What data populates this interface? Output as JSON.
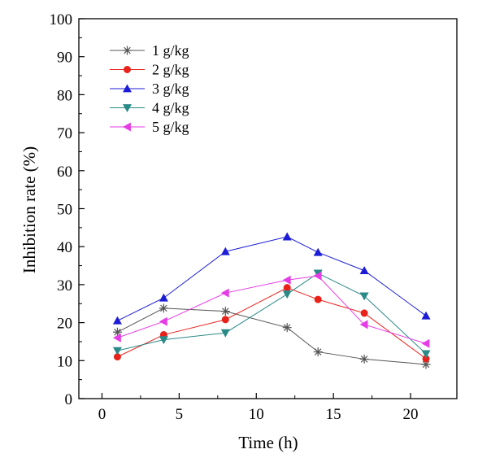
{
  "chart_data": {
    "type": "line",
    "title": "",
    "xlabel": "Time (h)",
    "ylabel": "Inhibition rate (%)",
    "xlim": [
      -1.5,
      23
    ],
    "ylim": [
      0,
      100
    ],
    "xticks": [
      0,
      5,
      10,
      15,
      20
    ],
    "yticks": [
      0,
      10,
      20,
      30,
      40,
      50,
      60,
      70,
      80,
      90,
      100
    ],
    "grid": false,
    "legend_position": "top-left",
    "x": [
      1,
      4,
      8,
      12,
      14,
      17,
      21
    ],
    "series": [
      {
        "name": "1 g/kg",
        "color": "#555555",
        "marker": "asterisk",
        "values": [
          17.5,
          23.8,
          23.0,
          18.7,
          12.3,
          10.4,
          9.0
        ]
      },
      {
        "name": "2 g/kg",
        "color": "#e8221b",
        "marker": "circle",
        "values": [
          11.0,
          16.8,
          20.8,
          29.2,
          26.1,
          22.5,
          10.5
        ]
      },
      {
        "name": "3 g/kg",
        "color": "#1c1cd6",
        "marker": "triangle-up",
        "values": [
          20.5,
          26.5,
          38.7,
          42.6,
          38.5,
          33.7,
          21.8
        ]
      },
      {
        "name": "4 g/kg",
        "color": "#2a8a87",
        "marker": "triangle-down",
        "values": [
          12.6,
          15.5,
          17.3,
          27.5,
          33.0,
          27.0,
          11.8
        ]
      },
      {
        "name": "5 g/kg",
        "color": "#e63ce6",
        "marker": "triangle-left",
        "values": [
          16.0,
          20.3,
          27.8,
          31.2,
          32.3,
          19.5,
          14.5
        ]
      }
    ]
  }
}
